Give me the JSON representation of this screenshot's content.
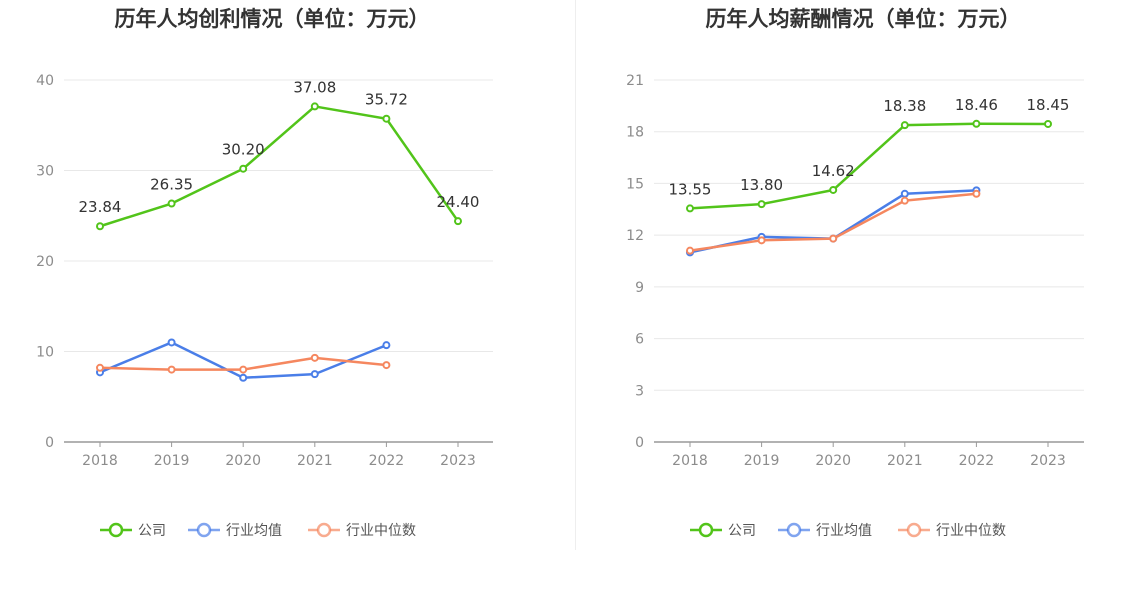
{
  "chart_data": [
    {
      "type": "line",
      "title": "历年人均创利情况（单位：万元）",
      "categories": [
        "2018",
        "2019",
        "2020",
        "2021",
        "2022",
        "2023"
      ],
      "ylim": [
        0,
        40
      ],
      "yticks": [
        0,
        10,
        20,
        30,
        40
      ],
      "grid": true,
      "legend_position": "bottom",
      "series": [
        {
          "name": "公司",
          "color": "#52c41a",
          "values": [
            23.84,
            26.35,
            30.2,
            37.08,
            35.72,
            24.4
          ],
          "labels": [
            "23.84",
            "26.35",
            "30.20",
            "37.08",
            "35.72",
            "24.40"
          ]
        },
        {
          "name": "行业均值",
          "color": "#4a7ee8",
          "values": [
            7.7,
            11.0,
            7.1,
            7.5,
            10.7,
            null
          ]
        },
        {
          "name": "行业中位数",
          "color": "#f5875f",
          "values": [
            8.2,
            8.0,
            8.0,
            9.3,
            8.5,
            null
          ]
        }
      ]
    },
    {
      "type": "line",
      "title": "历年人均薪酬情况（单位：万元）",
      "categories": [
        "2018",
        "2019",
        "2020",
        "2021",
        "2022",
        "2023"
      ],
      "ylim": [
        0,
        21
      ],
      "yticks": [
        0,
        3,
        6,
        9,
        12,
        15,
        18,
        21
      ],
      "grid": true,
      "legend_position": "bottom",
      "series": [
        {
          "name": "公司",
          "color": "#52c41a",
          "values": [
            13.55,
            13.8,
            14.62,
            18.38,
            18.46,
            18.45
          ],
          "labels": [
            "13.55",
            "13.80",
            "14.62",
            "18.38",
            "18.46",
            "18.45"
          ]
        },
        {
          "name": "行业均值",
          "color": "#4a7ee8",
          "values": [
            11.0,
            11.9,
            11.8,
            14.4,
            14.6,
            null
          ]
        },
        {
          "name": "行业中位数",
          "color": "#f5875f",
          "values": [
            11.1,
            11.7,
            11.8,
            14.0,
            14.4,
            null
          ]
        }
      ]
    }
  ]
}
